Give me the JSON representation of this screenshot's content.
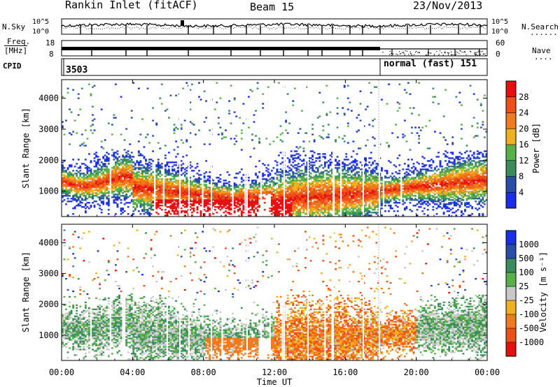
{
  "header": {
    "station": "Rankin Inlet (fitACF)",
    "beam": "Beam 15",
    "date": "23/Nov/2013"
  },
  "panels": {
    "nsky_label": "N.Sky",
    "nsearch_label": "N.Search",
    "nsearch_dots": "......",
    "freq_label_top": "Freq.",
    "freq_label_unit": "[MHz]",
    "nave_label": "Nave",
    "nave_dots": "....",
    "cpid_label": "CPID",
    "cpid_value_1": "3503",
    "cpid_value_2": "normal (fast) 151",
    "noise_ticks_left": [
      "10^5",
      "10^0"
    ],
    "noise_ticks_right": [
      "10^5",
      "10^0"
    ],
    "freq_ticks": [
      "18",
      "8"
    ],
    "nave_ticks": [
      "60",
      "0"
    ]
  },
  "colors": {
    "power_scale": [
      "#1a2ee6",
      "#2a4ea8",
      "#3a8c5c",
      "#58b049",
      "#f0b020",
      "#f07a1e",
      "#ee4f16",
      "#e60f0f"
    ],
    "velocity_scale": [
      "#e60f0f",
      "#ee4f16",
      "#f07a1e",
      "#f0b020",
      "#c8c8c8",
      "#58b049",
      "#3a8c5c",
      "#2a4ea8",
      "#1a2ee6"
    ]
  },
  "chart_data": [
    {
      "type": "heatmap",
      "name": "power",
      "xlabel": "Time UT",
      "ylabel": "Slant Range [km]",
      "xlim": [
        0,
        24
      ],
      "ylim": [
        180,
        4600
      ],
      "x_ticks": [
        "00:00",
        "04:00",
        "08:00",
        "12:00",
        "16:00",
        "20:00",
        "00:00"
      ],
      "y_ticks": [
        "1000",
        "2000",
        "3000",
        "4000"
      ],
      "y_tick_values": [
        1000,
        2000,
        3000,
        4000
      ],
      "colorbar": {
        "label": "Power [dB]",
        "tick_labels": [
          "4",
          "8",
          "12",
          "16",
          "20",
          "24",
          "28"
        ],
        "range": [
          0,
          32
        ]
      }
    },
    {
      "type": "heatmap",
      "name": "velocity",
      "xlabel": "Time UT",
      "ylabel": "Slant Range [km]",
      "xlim": [
        0,
        24
      ],
      "ylim": [
        180,
        4600
      ],
      "x_ticks": [
        "00:00",
        "04:00",
        "08:00",
        "12:00",
        "16:00",
        "20:00",
        "00:00"
      ],
      "y_ticks": [
        "1000",
        "2000",
        "3000",
        "4000"
      ],
      "y_tick_values": [
        1000,
        2000,
        3000,
        4000
      ],
      "colorbar": {
        "label": "Velocity [m s⁻¹]",
        "tick_labels": [
          "1000",
          "500",
          "100",
          "25",
          "-25",
          "-100",
          "-500",
          "-1000"
        ]
      }
    }
  ]
}
